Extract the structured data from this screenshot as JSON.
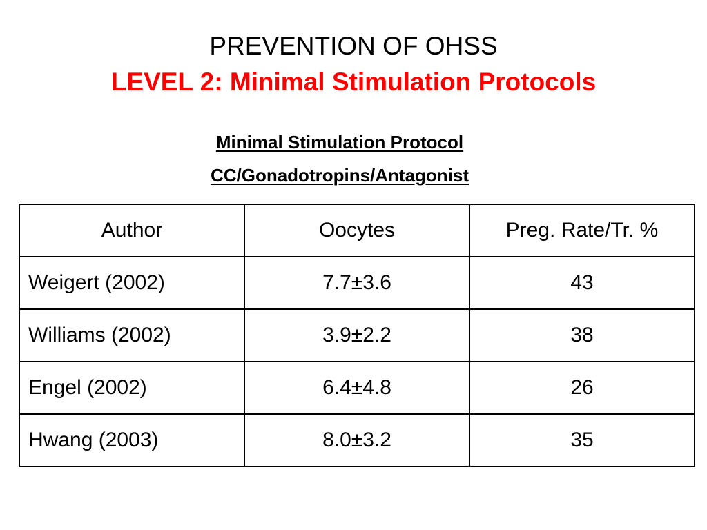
{
  "title": {
    "line1": "PREVENTION OF OHSS",
    "line2": "LEVEL 2: Minimal Stimulation Protocols"
  },
  "subtitle": {
    "line1": "Minimal Stimulation Protocol",
    "line2": "CC/Gonadotropins/Antagonist"
  },
  "table": {
    "headers": [
      "Author",
      "Oocytes",
      "Preg. Rate/Tr. %"
    ],
    "rows": [
      [
        "Weigert (2002)",
        "7.7±3.6",
        "43"
      ],
      [
        "Williams (2002)",
        "3.9±2.2",
        "38"
      ],
      [
        "Engel (2002)",
        "6.4±4.8",
        "26"
      ],
      [
        "Hwang (2003)",
        "8.0±3.2",
        "35"
      ]
    ]
  },
  "colors": {
    "accent": "#ff0000",
    "text": "#000000",
    "background": "#ffffff"
  }
}
